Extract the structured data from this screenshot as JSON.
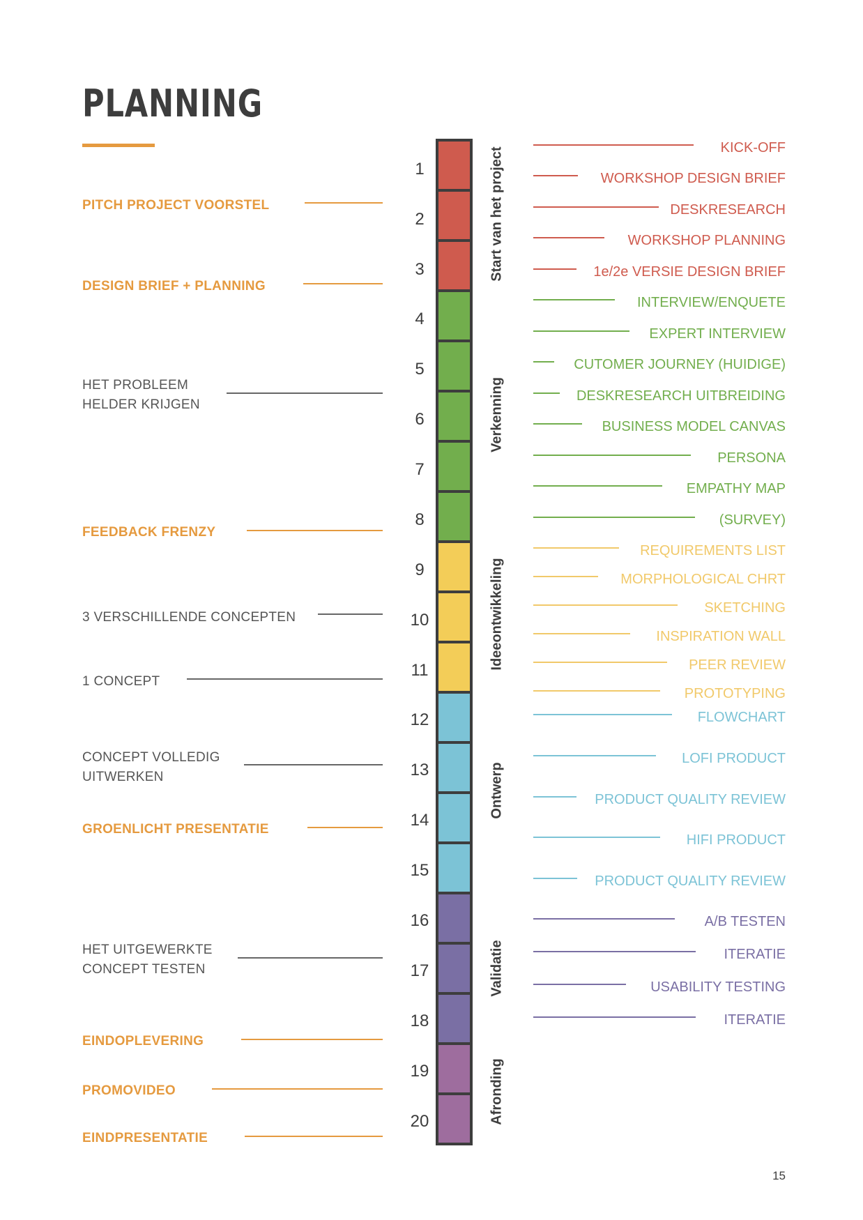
{
  "page": {
    "title": "PLANNING",
    "page_number": "15"
  },
  "colors": {
    "accent_orange": "#E59A3F",
    "red": "#CF5B4E",
    "green": "#72AE4D",
    "yellow": "#F3CD58",
    "blue": "#7CC3D6",
    "purple": "#7A6FA4",
    "mauve": "#9E6D9E",
    "dark": "#3d3d3d",
    "gray": "#555555"
  },
  "milestones": [
    {
      "text": "PITCH PROJECT VOORSTEL",
      "bold": true
    },
    {
      "text": "DESIGN BRIEF + PLANNING",
      "bold": true
    },
    {
      "text": "HET PROBLEEM\nHELDER KRIJGEN",
      "bold": false
    },
    {
      "text": "FEEDBACK FRENZY",
      "bold": true
    },
    {
      "text": "3 VERSCHILLENDE CONCEPTEN",
      "bold": false
    },
    {
      "text": "1 CONCEPT",
      "bold": false
    },
    {
      "text": "CONCEPT VOLLEDIG\nUITWERKEN",
      "bold": false
    },
    {
      "text": "GROENLICHT PRESENTATIE",
      "bold": true
    },
    {
      "text": "HET UITGEWERKTE\nCONCEPT TESTEN",
      "bold": false
    },
    {
      "text": "EINDOPLEVERING",
      "bold": true
    },
    {
      "text": "PROMOVIDEO",
      "bold": true
    },
    {
      "text": "EINDPRESENTATIE",
      "bold": true
    }
  ],
  "weeks": [
    "1",
    "2",
    "3",
    "4",
    "5",
    "6",
    "7",
    "8",
    "9",
    "10",
    "11",
    "12",
    "13",
    "14",
    "15",
    "16",
    "17",
    "18",
    "19",
    "20"
  ],
  "week_colors": [
    "red",
    "red",
    "red",
    "green",
    "green",
    "green",
    "green",
    "green",
    "yellow",
    "yellow",
    "yellow",
    "blue",
    "blue",
    "blue",
    "blue",
    "purple",
    "purple",
    "purple",
    "mauve",
    "mauve"
  ],
  "phases": [
    {
      "label": "Start van het project"
    },
    {
      "label": "Verkenning"
    },
    {
      "label": "Ideeontwikkeling"
    },
    {
      "label": "Ontwerp"
    },
    {
      "label": "Validatie"
    },
    {
      "label": "Afronding"
    }
  ],
  "activities": [
    {
      "text": "KICK-OFF",
      "color": "red"
    },
    {
      "text": "WORKSHOP  DESIGN BRIEF",
      "color": "red"
    },
    {
      "text": "DESKRESEARCH",
      "color": "red"
    },
    {
      "text": "WORKSHOP PLANNING",
      "color": "red"
    },
    {
      "text": "1e/2e VERSIE DESIGN BRIEF",
      "color": "red"
    },
    {
      "text": "INTERVIEW/ENQUETE",
      "color": "green"
    },
    {
      "text": "EXPERT INTERVIEW",
      "color": "green"
    },
    {
      "text": "CUTOMER JOURNEY (HUIDIGE)",
      "color": "green"
    },
    {
      "text": "DESKRESEARCH UITBREIDING",
      "color": "green"
    },
    {
      "text": "BUSINESS MODEL CANVAS",
      "color": "green"
    },
    {
      "text": "PERSONA",
      "color": "green"
    },
    {
      "text": "EMPATHY MAP",
      "color": "green"
    },
    {
      "text": "(SURVEY)",
      "color": "green"
    },
    {
      "text": "REQUIREMENTS LIST",
      "color": "yellow"
    },
    {
      "text": "MORPHOLOGICAL CHRT",
      "color": "yellow"
    },
    {
      "text": "SKETCHING",
      "color": "yellow"
    },
    {
      "text": "INSPIRATION WALL",
      "color": "yellow"
    },
    {
      "text": "PEER REVIEW",
      "color": "yellow"
    },
    {
      "text": "PROTOTYPING",
      "color": "yellow"
    },
    {
      "text": "FLOWCHART",
      "color": "blue"
    },
    {
      "text": "LOFI PRODUCT",
      "color": "blue"
    },
    {
      "text": "PRODUCT QUALITY REVIEW",
      "color": "blue"
    },
    {
      "text": "HIFI PRODUCT",
      "color": "blue"
    },
    {
      "text": "PRODUCT QUALITY REVIEW",
      "color": "blue"
    },
    {
      "text": "A/B TESTEN",
      "color": "purple"
    },
    {
      "text": "ITERATIE",
      "color": "purple"
    },
    {
      "text": "USABILITY TESTING",
      "color": "purple"
    },
    {
      "text": "ITERATIE",
      "color": "purple"
    }
  ]
}
